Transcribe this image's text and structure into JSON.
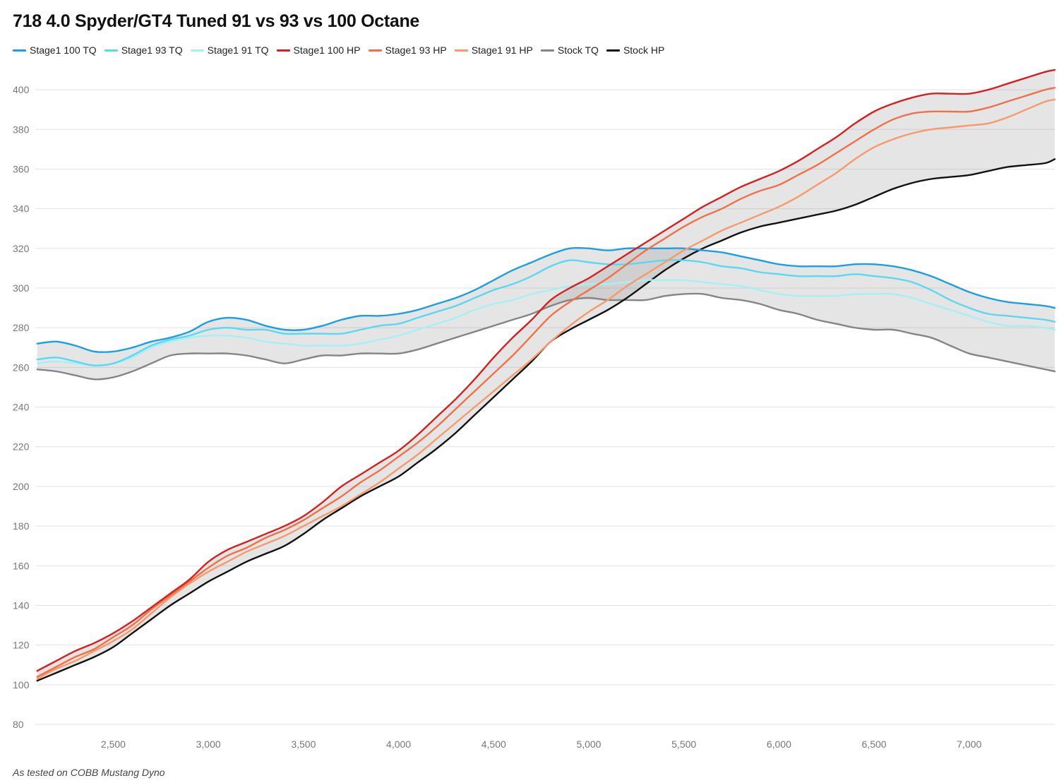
{
  "chart_data": {
    "type": "line",
    "title": "718 4.0 Spyder/GT4 Tuned 91 vs 93 vs 100 Octane",
    "xlabel": "",
    "ylabel": "",
    "xlim": [
      2090,
      7450
    ],
    "ylim": [
      80,
      410
    ],
    "x_ticks": [
      2500,
      3000,
      3500,
      4000,
      4500,
      5000,
      5500,
      6000,
      6500,
      7000
    ],
    "x_tick_labels": [
      "2,500",
      "3,000",
      "3,500",
      "4,000",
      "4,500",
      "5,000",
      "5,500",
      "6,000",
      "6,500",
      "7,000"
    ],
    "y_ticks": [
      80,
      100,
      120,
      140,
      160,
      180,
      200,
      220,
      240,
      260,
      280,
      300,
      320,
      340,
      360,
      380,
      400
    ],
    "y_tick_labels": [
      "80",
      "100",
      "120",
      "140",
      "160",
      "180",
      "200",
      "220",
      "240",
      "260",
      "280",
      "300",
      "320",
      "340",
      "360",
      "380",
      "400"
    ],
    "grid": true,
    "legend_position": "top-left",
    "shaded_bands": [
      {
        "upper": "Stage1 100 TQ",
        "lower": "Stock TQ"
      },
      {
        "upper": "Stage1 100 HP",
        "lower": "Stock HP"
      }
    ],
    "x": [
      2100,
      2200,
      2300,
      2400,
      2500,
      2600,
      2700,
      2800,
      2900,
      3000,
      3100,
      3200,
      3300,
      3400,
      3500,
      3600,
      3700,
      3800,
      3900,
      4000,
      4100,
      4200,
      4300,
      4400,
      4500,
      4600,
      4700,
      4800,
      4900,
      5000,
      5100,
      5200,
      5300,
      5400,
      5500,
      5600,
      5700,
      5800,
      5900,
      6000,
      6100,
      6200,
      6300,
      6400,
      6500,
      6600,
      6700,
      6800,
      6900,
      7000,
      7100,
      7200,
      7300,
      7400,
      7450
    ],
    "series": [
      {
        "name": "Stage1 100 TQ",
        "color": "#1a9fe0",
        "values": [
          272,
          273,
          271,
          268,
          268,
          270,
          273,
          275,
          278,
          283,
          285,
          284,
          281,
          279,
          279,
          281,
          284,
          286,
          286,
          287,
          289,
          292,
          295,
          299,
          304,
          309,
          313,
          317,
          320,
          320,
          319,
          320,
          320,
          320,
          320,
          319,
          318,
          316,
          314,
          312,
          311,
          311,
          311,
          312,
          312,
          311,
          309,
          306,
          302,
          298,
          295,
          293,
          292,
          291,
          290
        ]
      },
      {
        "name": "Stage1 93 TQ",
        "color": "#5ad8f2",
        "values": [
          264,
          265,
          263,
          261,
          262,
          266,
          271,
          274,
          276,
          279,
          280,
          279,
          279,
          277,
          277,
          277,
          277,
          279,
          281,
          282,
          285,
          288,
          291,
          295,
          299,
          302,
          306,
          311,
          314,
          313,
          312,
          312,
          313,
          314,
          314,
          313,
          311,
          310,
          308,
          307,
          306,
          306,
          306,
          307,
          306,
          305,
          303,
          299,
          294,
          290,
          287,
          286,
          285,
          284,
          283
        ]
      },
      {
        "name": "Stage1 91 TQ",
        "color": "#a6f0f5",
        "values": [
          262,
          263,
          262,
          261,
          262,
          265,
          270,
          273,
          275,
          276,
          276,
          275,
          273,
          272,
          271,
          271,
          271,
          272,
          274,
          276,
          279,
          282,
          285,
          289,
          292,
          294,
          297,
          299,
          301,
          302,
          302,
          303,
          304,
          304,
          304,
          303,
          302,
          301,
          299,
          297,
          296,
          296,
          296,
          297,
          297,
          297,
          295,
          292,
          289,
          286,
          283,
          281,
          281,
          280,
          279
        ]
      },
      {
        "name": "Stage1 100 HP",
        "color": "#d42020",
        "values": [
          107,
          112,
          117,
          121,
          126,
          132,
          139,
          146,
          153,
          162,
          168,
          172,
          176,
          180,
          185,
          192,
          200,
          206,
          212,
          218,
          226,
          235,
          244,
          254,
          265,
          275,
          284,
          294,
          300,
          305,
          311,
          317,
          323,
          329,
          335,
          341,
          346,
          351,
          355,
          359,
          364,
          370,
          376,
          383,
          389,
          393,
          396,
          398,
          398,
          398,
          400,
          403,
          406,
          409,
          410
        ]
      },
      {
        "name": "Stage1 93 HP",
        "color": "#f07048",
        "values": [
          104,
          109,
          114,
          118,
          124,
          130,
          138,
          145,
          152,
          159,
          165,
          169,
          174,
          178,
          183,
          189,
          195,
          202,
          208,
          215,
          222,
          230,
          239,
          248,
          257,
          266,
          276,
          286,
          293,
          299,
          305,
          312,
          319,
          325,
          331,
          336,
          340,
          345,
          349,
          352,
          357,
          362,
          368,
          374,
          380,
          385,
          388,
          389,
          389,
          389,
          391,
          394,
          397,
          400,
          401
        ]
      },
      {
        "name": "Stage1 91 HP",
        "color": "#f79a6b",
        "values": [
          103,
          108,
          112,
          117,
          122,
          128,
          136,
          144,
          151,
          157,
          162,
          167,
          171,
          175,
          180,
          185,
          190,
          196,
          202,
          209,
          216,
          224,
          232,
          240,
          248,
          256,
          264,
          273,
          281,
          288,
          294,
          301,
          307,
          313,
          319,
          324,
          329,
          333,
          337,
          341,
          346,
          352,
          358,
          365,
          371,
          375,
          378,
          380,
          381,
          382,
          383,
          386,
          390,
          394,
          395
        ]
      },
      {
        "name": "Stock TQ",
        "color": "#858585",
        "values": [
          259,
          258,
          256,
          254,
          255,
          258,
          262,
          266,
          267,
          267,
          267,
          266,
          264,
          262,
          264,
          266,
          266,
          267,
          267,
          267,
          269,
          272,
          275,
          278,
          281,
          284,
          287,
          291,
          294,
          295,
          294,
          294,
          294,
          296,
          297,
          297,
          295,
          294,
          292,
          289,
          287,
          284,
          282,
          280,
          279,
          279,
          277,
          275,
          271,
          267,
          265,
          263,
          261,
          259,
          258
        ]
      },
      {
        "name": "Stock HP",
        "color": "#111111",
        "values": [
          102,
          106,
          110,
          114,
          119,
          126,
          133,
          140,
          146,
          152,
          157,
          162,
          166,
          170,
          176,
          183,
          189,
          195,
          200,
          205,
          212,
          219,
          227,
          236,
          245,
          254,
          263,
          273,
          279,
          284,
          289,
          295,
          302,
          309,
          315,
          320,
          324,
          328,
          331,
          333,
          335,
          337,
          339,
          342,
          346,
          350,
          353,
          355,
          356,
          357,
          359,
          361,
          362,
          363,
          365
        ]
      }
    ]
  },
  "footer_note": "As tested on COBB Mustang Dyno"
}
